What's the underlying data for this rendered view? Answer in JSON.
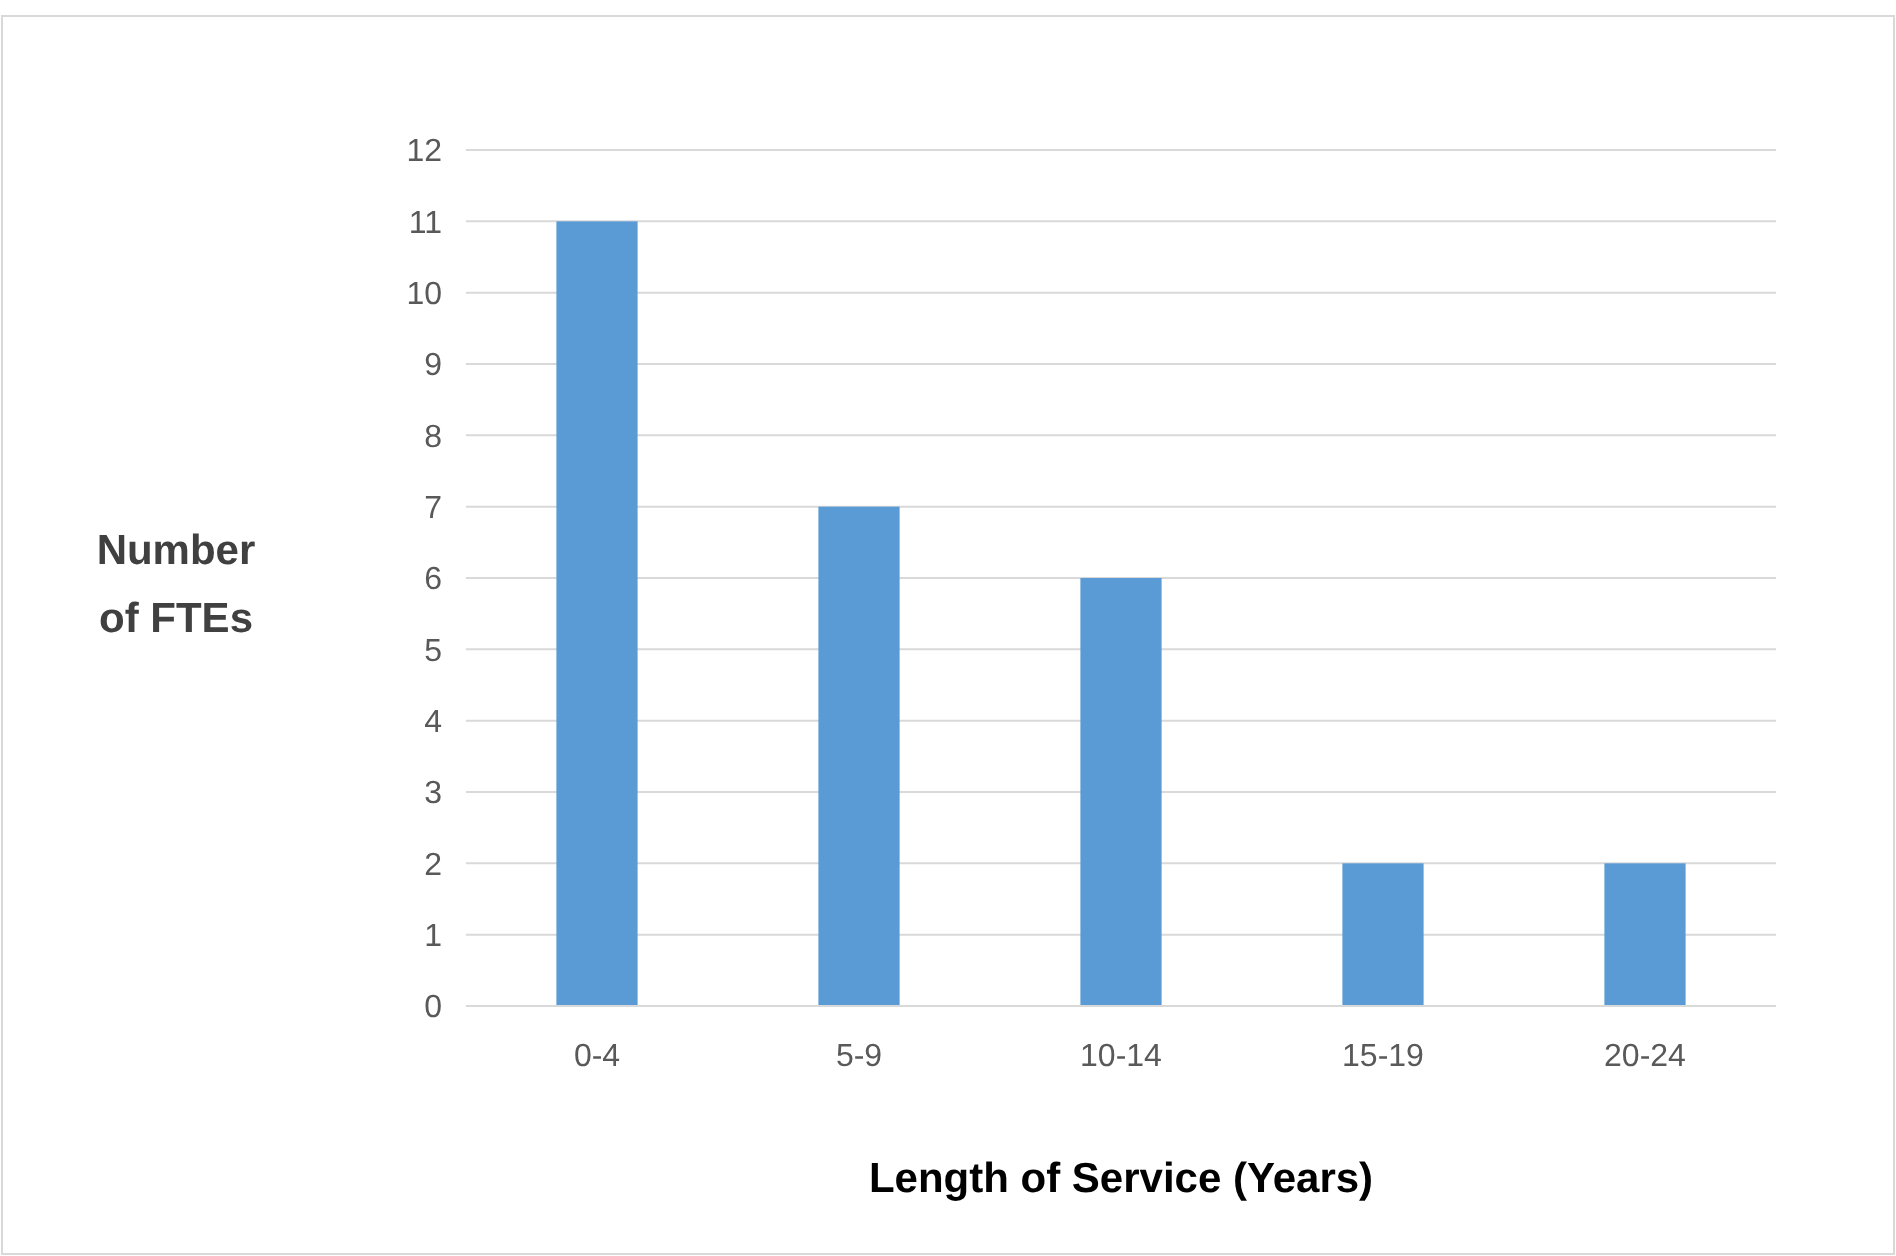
{
  "chart_data": {
    "type": "bar",
    "xlabel": "Length of Service (Years)",
    "ylabel": "Number of FTEs",
    "categories": [
      "0-4",
      "5-9",
      "10-14",
      "15-19",
      "20-24"
    ],
    "values": [
      11,
      7,
      6,
      2,
      2
    ],
    "color": "#5b9bd5",
    "ylim": [
      0,
      12
    ],
    "yticks": [
      0,
      1,
      2,
      3,
      4,
      5,
      6,
      7,
      8,
      9,
      10,
      11,
      12
    ],
    "grid": "y"
  }
}
